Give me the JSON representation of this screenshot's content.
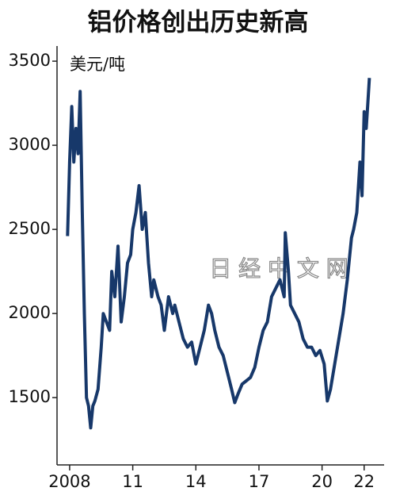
{
  "chart_data": {
    "type": "line",
    "title": "铝价格创出历史新高",
    "y_label": "美元/吨",
    "watermark": "日 经 中 文 网",
    "x": [
      2007.9,
      2008.0,
      2008.1,
      2008.2,
      2008.3,
      2008.4,
      2008.5,
      2008.6,
      2008.7,
      2008.8,
      2008.9,
      2009.0,
      2009.1,
      2009.2,
      2009.35,
      2009.5,
      2009.6,
      2009.75,
      2009.9,
      2010.0,
      2010.15,
      2010.3,
      2010.45,
      2010.6,
      2010.75,
      2010.9,
      2011.0,
      2011.15,
      2011.3,
      2011.45,
      2011.6,
      2011.75,
      2011.9,
      2012.0,
      2012.2,
      2012.35,
      2012.5,
      2012.7,
      2012.9,
      2013.0,
      2013.2,
      2013.4,
      2013.6,
      2013.8,
      2014.0,
      2014.2,
      2014.4,
      2014.6,
      2014.75,
      2014.9,
      2015.1,
      2015.3,
      2015.5,
      2015.7,
      2015.85,
      2016.0,
      2016.2,
      2016.4,
      2016.6,
      2016.8,
      2017.0,
      2017.2,
      2017.4,
      2017.6,
      2017.8,
      2018.0,
      2018.2,
      2018.25,
      2018.4,
      2018.5,
      2018.7,
      2018.9,
      2019.1,
      2019.3,
      2019.5,
      2019.7,
      2019.9,
      2020.1,
      2020.25,
      2020.4,
      2020.6,
      2020.8,
      2021.0,
      2021.2,
      2021.4,
      2021.5,
      2021.65,
      2021.8,
      2021.9,
      2022.0,
      2022.1,
      2022.2,
      2022.25
    ],
    "series": [
      {
        "name": "铝价格",
        "color": "#17386a",
        "values": [
          2460,
          2900,
          3230,
          2900,
          3100,
          2950,
          3320,
          2600,
          2000,
          1500,
          1450,
          1320,
          1450,
          1480,
          1550,
          1800,
          2000,
          1950,
          1900,
          2250,
          2100,
          2400,
          1950,
          2100,
          2300,
          2350,
          2500,
          2600,
          2760,
          2500,
          2600,
          2300,
          2100,
          2200,
          2100,
          2050,
          1900,
          2100,
          2000,
          2050,
          1950,
          1850,
          1800,
          1830,
          1700,
          1800,
          1900,
          2050,
          2000,
          1900,
          1800,
          1750,
          1650,
          1550,
          1470,
          1520,
          1580,
          1600,
          1620,
          1680,
          1800,
          1900,
          1950,
          2100,
          2150,
          2200,
          2100,
          2480,
          2250,
          2050,
          2000,
          1950,
          1850,
          1800,
          1800,
          1750,
          1780,
          1700,
          1480,
          1550,
          1700,
          1850,
          2000,
          2200,
          2450,
          2500,
          2600,
          2900,
          2700,
          3200,
          3100,
          3300,
          3400
        ]
      }
    ],
    "xlim": [
      2007.4,
      2022.95
    ],
    "xticks": [
      2008,
      {
        "value": 2011,
        "label": "11"
      },
      {
        "value": 2014,
        "label": "14"
      },
      {
        "value": 2017,
        "label": "17"
      },
      {
        "value": 2020,
        "label": "20"
      },
      {
        "value": 2022,
        "label": "22"
      }
    ],
    "ylim": [
      1100,
      3590
    ],
    "yticks": [
      1500,
      2000,
      2500,
      3000,
      3500
    ],
    "grid": false
  }
}
